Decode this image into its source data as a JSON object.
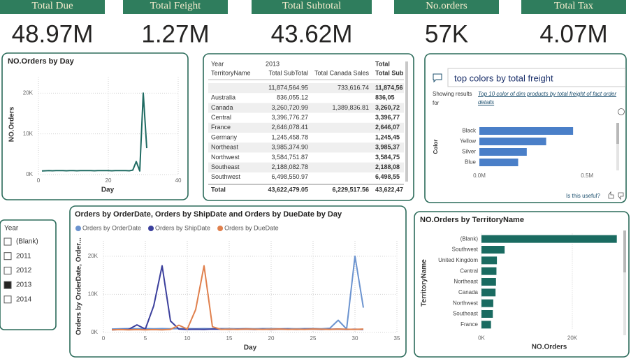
{
  "kpis": [
    {
      "label": "Total Due",
      "value": "48.97M"
    },
    {
      "label": "Total Feight",
      "value": "1.27M"
    },
    {
      "label": "Total Subtotal",
      "value": "43.62M"
    },
    {
      "label": "No.orders",
      "value": "57K"
    },
    {
      "label": "Total Tax",
      "value": "4.07M"
    }
  ],
  "table": {
    "year_label": "Year",
    "year": "2013",
    "total_label": "Total",
    "columns": [
      "TerritoryName",
      "Total SubTotal",
      "Total Canada Sales",
      "Total Sub"
    ],
    "rows": [
      [
        null,
        "11,874,564.95",
        "733,616.74",
        "11,874,56"
      ],
      [
        "Australia",
        "836,055.12",
        null,
        "836,05"
      ],
      [
        "Canada",
        "3,260,720.99",
        "1,389,836.81",
        "3,260,72"
      ],
      [
        "Central",
        "3,396,776.27",
        null,
        "3,396,77"
      ],
      [
        "France",
        "2,646,078.41",
        null,
        "2,646,07"
      ],
      [
        "Germany",
        "1,245,458.78",
        null,
        "1,245,45"
      ],
      [
        "Northeast",
        "3,985,374.90",
        null,
        "3,985,37"
      ],
      [
        "Northwest",
        "3,584,751.87",
        null,
        "3,584,75"
      ],
      [
        "Southeast",
        "2,188,082.78",
        null,
        "2,188,08"
      ],
      [
        "Southwest",
        "6,498,550.97",
        null,
        "6,498,55"
      ],
      [
        "Total",
        "43,622,479.05",
        "6,229,517.56",
        "43,622,47"
      ]
    ]
  },
  "slicer": {
    "title": "Year",
    "options": [
      "(Blank)",
      "2011",
      "2012",
      "2013",
      "2014"
    ],
    "checked": [
      false,
      false,
      false,
      true,
      false
    ]
  },
  "qa": {
    "query": "top colors by total freight",
    "showing": [
      "Showing results",
      "for"
    ],
    "interpretation": "Top 10 color of dim products by total freight of fact order details",
    "feedback": "Is this useful?"
  },
  "chart_data": [
    {
      "type": "line",
      "title": "NO.Orders by Day",
      "xlabel": "Day",
      "ylabel": "NO.Orders",
      "color": "#1f6b62",
      "grid": true,
      "x": [
        1,
        2,
        3,
        4,
        5,
        6,
        7,
        8,
        9,
        10,
        11,
        12,
        13,
        14,
        15,
        16,
        17,
        18,
        19,
        20,
        21,
        22,
        23,
        24,
        25,
        26,
        27,
        28,
        29,
        30,
        31
      ],
      "values": [
        900,
        950,
        1000,
        950,
        1000,
        980,
        1000,
        950,
        1000,
        1000,
        950,
        1000,
        980,
        1000,
        1000,
        950,
        1000,
        980,
        1000,
        1000,
        950,
        1000,
        980,
        1000,
        1000,
        950,
        1100,
        3200,
        900,
        20000,
        6500
      ],
      "xlim": [
        0,
        40
      ],
      "xticks": [
        0,
        20,
        40
      ],
      "ylim": [
        0,
        24000
      ],
      "yticks": [
        {
          "value": 0,
          "label": "0K"
        },
        {
          "value": 10000,
          "label": "10K"
        },
        {
          "value": 20000,
          "label": "20K"
        }
      ]
    },
    {
      "type": "bar",
      "horizontal": true,
      "ylabel": "Color",
      "color": "#4a7fc8",
      "grid": false,
      "categories": [
        "Black",
        "Yellow",
        "Silver",
        "Blue"
      ],
      "values": [
        435000,
        310000,
        220000,
        180000
      ],
      "xlim": [
        0,
        600000
      ],
      "xticks": [
        {
          "value": 0,
          "label": "0.0M"
        },
        {
          "value": 500000,
          "label": "0.5M"
        }
      ]
    },
    {
      "type": "line",
      "title": "Orders by OrderDate, Orders by ShipDate and Orders by DueDate by Day",
      "xlabel": "Day",
      "ylabel": "Orders by OrderDate, Order...",
      "grid": true,
      "x": [
        1,
        2,
        3,
        4,
        5,
        6,
        7,
        8,
        9,
        10,
        11,
        12,
        13,
        14,
        15,
        16,
        17,
        18,
        19,
        20,
        21,
        22,
        23,
        24,
        25,
        26,
        27,
        28,
        29,
        30,
        31
      ],
      "series": [
        {
          "name": "Orders by OrderDate",
          "color": "#6b93cf",
          "values": [
            900,
            950,
            1000,
            950,
            1000,
            980,
            1000,
            950,
            1000,
            1000,
            950,
            1000,
            980,
            1000,
            1000,
            950,
            1000,
            980,
            1000,
            1000,
            950,
            1000,
            980,
            1000,
            1000,
            950,
            1100,
            3200,
            900,
            20000,
            6500
          ]
        },
        {
          "name": "Orders by ShipDate",
          "color": "#3b3f9c",
          "values": [
            700,
            750,
            800,
            2000,
            900,
            7000,
            17500,
            3000,
            900,
            800,
            850,
            800,
            900,
            850,
            800,
            850,
            900,
            800,
            850,
            800,
            900,
            850,
            800,
            850,
            900,
            800,
            850,
            900,
            800,
            850,
            800
          ]
        },
        {
          "name": "Orders by DueDate",
          "color": "#e0804d",
          "values": [
            700,
            750,
            700,
            750,
            700,
            750,
            700,
            800,
            1900,
            900,
            6000,
            17500,
            1500,
            800,
            850,
            800,
            900,
            850,
            800,
            850,
            900,
            800,
            850,
            800,
            900,
            850,
            800,
            900,
            850,
            800,
            900
          ]
        }
      ],
      "xlim": [
        0,
        35
      ],
      "xticks": [
        0,
        5,
        10,
        15,
        20,
        25,
        30,
        35
      ],
      "ylim": [
        0,
        24000
      ],
      "yticks": [
        {
          "value": 0,
          "label": "0K"
        },
        {
          "value": 10000,
          "label": "10K"
        },
        {
          "value": 20000,
          "label": "20K"
        }
      ]
    },
    {
      "type": "bar",
      "horizontal": true,
      "title": "NO.Orders by TerritoryName",
      "xlabel": "NO.Orders",
      "ylabel": "TerritoryName",
      "color": "#1a6b61",
      "grid": true,
      "categories": [
        "(Blank)",
        "Southwest",
        "United Kingdom",
        "Central",
        "Northeast",
        "Canada",
        "Northwest",
        "Southeast",
        "France"
      ],
      "values": [
        29800,
        5100,
        3400,
        3300,
        3200,
        3100,
        2600,
        2500,
        2100
      ],
      "xlim": [
        0,
        30000
      ],
      "xticks": [
        {
          "value": 0,
          "label": "0K"
        },
        {
          "value": 20000,
          "label": "20K"
        }
      ]
    }
  ]
}
